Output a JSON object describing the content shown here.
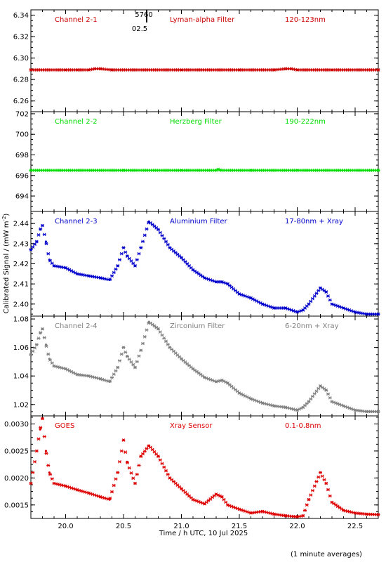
{
  "figure": {
    "xlabel": "Time / h UTC, 10 Jul 2025",
    "ylabel": "Calibrated Signal / (mW m",
    "ylabel_sup": "-2",
    "ylabel_end": ")",
    "footnote": "(1 minute averages)",
    "marker_top": "5760",
    "marker_bottom": "02.5",
    "marker_x": 20.7
  },
  "chart_data": [
    {
      "type": "scatter",
      "name": "Channel 2-1",
      "labels": [
        "Channel 2-1",
        "Lyman-alpha Filter",
        "120-123nm"
      ],
      "color": "#cc0000",
      "xlim": [
        19.7,
        22.7
      ],
      "ylim": [
        6.25,
        6.345
      ],
      "yticks": [
        "6.26",
        "6.28",
        "6.30",
        "6.32",
        "6.34"
      ],
      "x": [
        19.7,
        20.0,
        20.1,
        20.2,
        20.25,
        20.3,
        20.4,
        21.0,
        21.5,
        21.8,
        21.9,
        21.95,
        22.0,
        22.3,
        22.7
      ],
      "y": [
        6.289,
        6.289,
        6.289,
        6.289,
        6.29,
        6.29,
        6.289,
        6.289,
        6.289,
        6.289,
        6.29,
        6.29,
        6.289,
        6.289,
        6.289
      ]
    },
    {
      "type": "scatter",
      "name": "Channel 2-2",
      "labels": [
        "Channel 2-2",
        "Herzberg Filter",
        "190-222nm"
      ],
      "color": "#00dd00",
      "xlim": [
        19.7,
        22.7
      ],
      "ylim": [
        692.5,
        702.2
      ],
      "yticks": [
        "694",
        "696",
        "698",
        "700",
        "702"
      ],
      "x": [
        19.7,
        20.5,
        21.0,
        21.3,
        21.32,
        21.34,
        21.6,
        22.0,
        22.7
      ],
      "y": [
        696.5,
        696.5,
        696.5,
        696.5,
        696.6,
        696.5,
        696.5,
        696.5,
        696.5
      ]
    },
    {
      "type": "scatter",
      "name": "Channel 2-3",
      "labels": [
        "Channel 2-3",
        "Aluminium Filter",
        "17-80nm + Xray"
      ],
      "color": "#0000cc",
      "xlim": [
        19.7,
        22.7
      ],
      "ylim": [
        2.394,
        2.446
      ],
      "yticks": [
        "2.40",
        "2.41",
        "2.42",
        "2.43",
        "2.44"
      ],
      "x": [
        19.7,
        19.75,
        19.78,
        19.8,
        19.83,
        19.86,
        19.9,
        20.0,
        20.1,
        20.2,
        20.3,
        20.38,
        20.45,
        20.5,
        20.53,
        20.6,
        20.65,
        20.72,
        20.8,
        20.9,
        21.0,
        21.1,
        21.2,
        21.3,
        21.35,
        21.4,
        21.5,
        21.6,
        21.7,
        21.8,
        21.9,
        22.0,
        22.05,
        22.1,
        22.2,
        22.25,
        22.3,
        22.4,
        22.5,
        22.6,
        22.7
      ],
      "y": [
        2.427,
        2.431,
        2.437,
        2.439,
        2.431,
        2.422,
        2.419,
        2.418,
        2.415,
        2.414,
        2.413,
        2.412,
        2.419,
        2.428,
        2.424,
        2.419,
        2.428,
        2.441,
        2.437,
        2.428,
        2.423,
        2.417,
        2.413,
        2.411,
        2.411,
        2.41,
        2.405,
        2.403,
        2.4,
        2.398,
        2.398,
        2.396,
        2.397,
        2.4,
        2.408,
        2.406,
        2.4,
        2.398,
        2.396,
        2.395,
        2.395
      ]
    },
    {
      "type": "scatter",
      "name": "Channel 2-4",
      "labels": [
        "Channel 2-4",
        "Zirconium Filter",
        "6-20nm + Xray"
      ],
      "color": "#808080",
      "xlim": [
        19.7,
        22.7
      ],
      "ylim": [
        1.012,
        1.082
      ],
      "yticks": [
        "1.02",
        "1.04",
        "1.06",
        "1.08"
      ],
      "x": [
        19.7,
        19.75,
        19.78,
        19.8,
        19.83,
        19.86,
        19.9,
        20.0,
        20.1,
        20.2,
        20.3,
        20.38,
        20.45,
        20.5,
        20.53,
        20.6,
        20.65,
        20.72,
        20.8,
        20.9,
        21.0,
        21.1,
        21.2,
        21.3,
        21.35,
        21.4,
        21.5,
        21.6,
        21.7,
        21.8,
        21.9,
        22.0,
        22.05,
        22.1,
        22.2,
        22.25,
        22.3,
        22.4,
        22.5,
        22.6,
        22.7
      ],
      "y": [
        1.055,
        1.062,
        1.07,
        1.073,
        1.062,
        1.052,
        1.047,
        1.045,
        1.041,
        1.04,
        1.038,
        1.036,
        1.046,
        1.06,
        1.054,
        1.046,
        1.058,
        1.078,
        1.073,
        1.06,
        1.052,
        1.045,
        1.039,
        1.036,
        1.037,
        1.035,
        1.028,
        1.024,
        1.021,
        1.019,
        1.018,
        1.016,
        1.018,
        1.022,
        1.033,
        1.03,
        1.022,
        1.019,
        1.016,
        1.015,
        1.015
      ]
    },
    {
      "type": "scatter",
      "name": "GOES",
      "labels": [
        "GOES",
        "Xray Sensor",
        "0.1-0.8nm"
      ],
      "color": "#dd0000",
      "xlim": [
        19.7,
        22.7
      ],
      "ylim": [
        0.00125,
        0.00315
      ],
      "yticks": [
        "0.0015",
        "0.0020",
        "0.0025",
        "0.0030"
      ],
      "x": [
        19.7,
        19.75,
        19.78,
        19.8,
        19.83,
        19.86,
        19.9,
        20.0,
        20.1,
        20.2,
        20.3,
        20.38,
        20.45,
        20.5,
        20.53,
        20.6,
        20.65,
        20.72,
        20.8,
        20.9,
        21.0,
        21.1,
        21.2,
        21.3,
        21.35,
        21.4,
        21.5,
        21.6,
        21.7,
        21.8,
        21.9,
        22.0,
        22.05,
        22.1,
        22.2,
        22.25,
        22.3,
        22.4,
        22.5,
        22.6,
        22.7
      ],
      "y": [
        0.0019,
        0.0025,
        0.0029,
        0.0031,
        0.0025,
        0.0021,
        0.0019,
        0.00185,
        0.00178,
        0.00172,
        0.00165,
        0.0016,
        0.0021,
        0.0027,
        0.0023,
        0.0019,
        0.0024,
        0.0026,
        0.0024,
        0.002,
        0.0018,
        0.0016,
        0.00152,
        0.0017,
        0.00165,
        0.0015,
        0.00142,
        0.00135,
        0.00138,
        0.00133,
        0.0013,
        0.00128,
        0.0013,
        0.0016,
        0.0021,
        0.0019,
        0.00155,
        0.0014,
        0.00135,
        0.00133,
        0.00132
      ]
    }
  ],
  "xticks": [
    "20.0",
    "20.5",
    "21.0",
    "21.5",
    "22.0",
    "22.5"
  ],
  "xtick_values": [
    20.0,
    20.5,
    21.0,
    21.5,
    22.0,
    22.5
  ]
}
